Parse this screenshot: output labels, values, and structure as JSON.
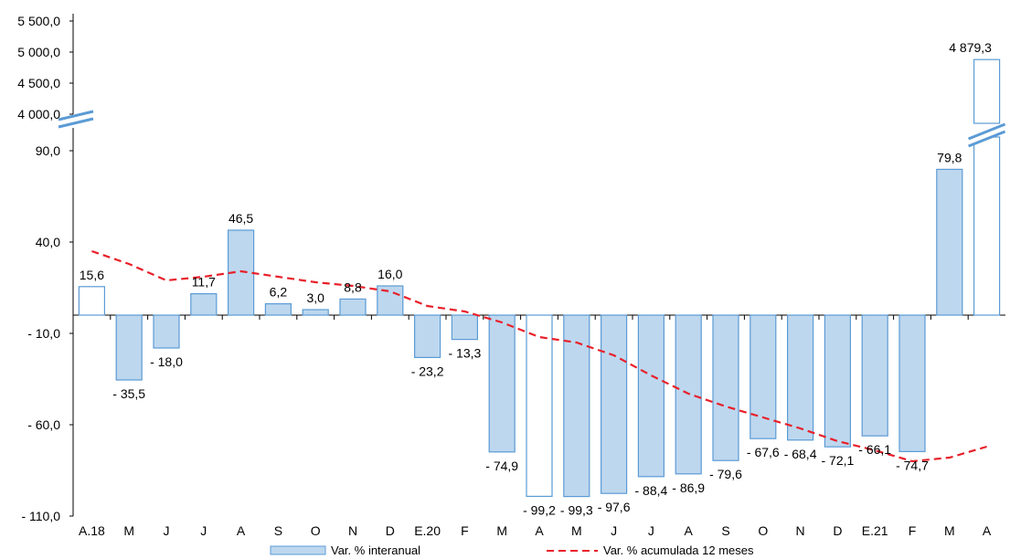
{
  "chart_data": {
    "type": "bar",
    "title": "",
    "xlabel": "",
    "ylabel": "",
    "categories": [
      "A.18",
      "M",
      "J",
      "J",
      "A",
      "S",
      "O",
      "N",
      "D",
      "E.20",
      "F",
      "M",
      "A",
      "M",
      "J",
      "J",
      "A",
      "S",
      "O",
      "N",
      "D",
      "E.21",
      "F",
      "M",
      "A"
    ],
    "series": [
      {
        "name": "Var. % interanual",
        "type": "bar",
        "values": [
          15.6,
          -35.5,
          -18.0,
          11.7,
          46.5,
          6.2,
          3.0,
          8.8,
          16.0,
          -23.2,
          -13.3,
          -74.9,
          -99.2,
          -99.3,
          -97.6,
          -88.4,
          -86.9,
          -79.6,
          -67.6,
          -68.4,
          -72.1,
          -66.1,
          -74.7,
          79.8,
          4879.3
        ],
        "labels": [
          "15,6",
          "- 35,5",
          "- 18,0",
          "11,7",
          "46,5",
          "6,2",
          "3,0",
          "8,8",
          "16,0",
          "- 23,2",
          "- 13,3",
          "- 74,9",
          "- 99,2",
          "- 99,3",
          "- 97,6",
          "- 88,4",
          "- 86,9",
          "- 79,6",
          "- 67,6",
          "- 68,4",
          "- 72,1",
          "- 66,1",
          "- 74,7",
          "79,8",
          "4 879,3"
        ],
        "outlined": [
          true,
          false,
          false,
          false,
          false,
          false,
          false,
          false,
          false,
          false,
          false,
          false,
          true,
          false,
          false,
          false,
          false,
          false,
          false,
          false,
          false,
          false,
          false,
          false,
          true
        ],
        "color": "#bdd7ee",
        "border": "#5b9bd5"
      },
      {
        "name": "Var. % acumulada 12 meses",
        "type": "line",
        "style": "dashed",
        "color": "#e8202a",
        "values": [
          35,
          28,
          19,
          21,
          24,
          21,
          18,
          16,
          13,
          5,
          2,
          -4,
          -12,
          -15,
          -22,
          -33,
          -43,
          -50,
          -56,
          -62,
          -69,
          -74,
          -80,
          -78,
          -72
        ]
      }
    ],
    "y_axis": {
      "lower_ticks": [
        "90,0",
        "40,0",
        "- 10,0",
        "- 60,0",
        "- 110,0"
      ],
      "lower_tick_values": [
        90,
        40,
        -10,
        -60,
        -110
      ],
      "upper_ticks": [
        "5 500,0",
        "5 000,0",
        "4 500,0",
        "4 000,0"
      ],
      "upper_tick_values": [
        5500,
        5000,
        4500,
        4000
      ],
      "lower_range": [
        -110,
        90
      ],
      "upper_range": [
        4000,
        5500
      ],
      "axis_break": true
    },
    "legend": {
      "position": "bottom"
    },
    "grid": false
  }
}
